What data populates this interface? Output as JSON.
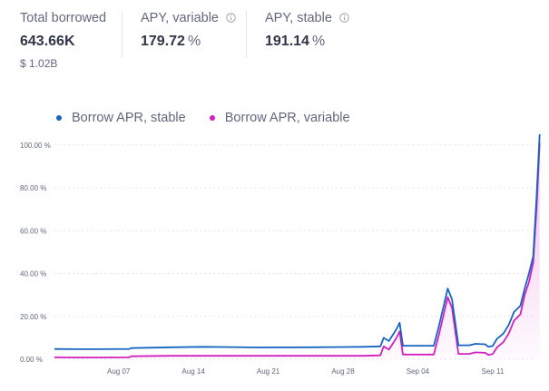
{
  "stats": {
    "total_borrowed": {
      "label": "Total borrowed",
      "value": "643.66K",
      "usd": "$ 1.02B"
    },
    "apy_variable": {
      "label": "APY, variable",
      "value": "179.72",
      "unit": "%"
    },
    "apy_stable": {
      "label": "APY, stable",
      "value": "191.14",
      "unit": "%"
    }
  },
  "colors": {
    "stable": "#1565c0",
    "variable": "#d41ebf",
    "grid": "#e3e4ea"
  },
  "chart_data": {
    "type": "line",
    "title": "",
    "xlabel": "",
    "ylabel": "",
    "legend_position": "top-left",
    "ylim": [
      0,
      105
    ],
    "y_ticks": [
      "0.00 %",
      "20.00 %",
      "40.00 %",
      "60.00 %",
      "80.00 %",
      "100.00 %"
    ],
    "x_ticks": [
      {
        "day": 7,
        "label": "Aug 07"
      },
      {
        "day": 14,
        "label": "Aug 14"
      },
      {
        "day": 21,
        "label": "Aug 21"
      },
      {
        "day": 28,
        "label": "Aug 28"
      },
      {
        "day": 35,
        "label": "Sep 04"
      },
      {
        "day": 42,
        "label": "Sep 11"
      }
    ],
    "xlim": [
      1,
      46
    ],
    "series": [
      {
        "name": "Borrow APR, stable",
        "points": [
          [
            1,
            4.8
          ],
          [
            3,
            4.7
          ],
          [
            5,
            4.7
          ],
          [
            8,
            4.8
          ],
          [
            8.2,
            5.2
          ],
          [
            12,
            5.6
          ],
          [
            15,
            5.8
          ],
          [
            20,
            5.5
          ],
          [
            25,
            5.6
          ],
          [
            30,
            5.8
          ],
          [
            31.5,
            6.0
          ],
          [
            31.8,
            10
          ],
          [
            32.3,
            8.5
          ],
          [
            33,
            14
          ],
          [
            33.3,
            17
          ],
          [
            33.6,
            6.3
          ],
          [
            36.5,
            6.3
          ],
          [
            37,
            16
          ],
          [
            37.8,
            33
          ],
          [
            38.2,
            28
          ],
          [
            38.8,
            6.5
          ],
          [
            39.8,
            6.5
          ],
          [
            40.4,
            7.2
          ],
          [
            41.3,
            7
          ],
          [
            41.6,
            5.8
          ],
          [
            42,
            6.2
          ],
          [
            42.4,
            9.5
          ],
          [
            43,
            12
          ],
          [
            43.5,
            16
          ],
          [
            44,
            22
          ],
          [
            44.6,
            25
          ],
          [
            45,
            33
          ],
          [
            45.4,
            40
          ],
          [
            45.8,
            48
          ],
          [
            46.1,
            75
          ],
          [
            46.4,
            105
          ]
        ]
      },
      {
        "name": "Borrow APR, variable",
        "points": [
          [
            1,
            0.9
          ],
          [
            3,
            0.8
          ],
          [
            5,
            0.8
          ],
          [
            8,
            0.9
          ],
          [
            8.2,
            1.4
          ],
          [
            12,
            1.6
          ],
          [
            15,
            1.6
          ],
          [
            20,
            1.6
          ],
          [
            25,
            1.6
          ],
          [
            30,
            1.6
          ],
          [
            31.5,
            1.8
          ],
          [
            31.8,
            6
          ],
          [
            32.3,
            4.5
          ],
          [
            33,
            10
          ],
          [
            33.3,
            13
          ],
          [
            33.6,
            2.2
          ],
          [
            36.5,
            2.2
          ],
          [
            37,
            12
          ],
          [
            37.8,
            29
          ],
          [
            38.2,
            24
          ],
          [
            38.8,
            2.5
          ],
          [
            39.8,
            2.5
          ],
          [
            40.4,
            3.2
          ],
          [
            41.3,
            3.0
          ],
          [
            41.6,
            2.0
          ],
          [
            42,
            2.4
          ],
          [
            42.4,
            5.5
          ],
          [
            43,
            8
          ],
          [
            43.5,
            12
          ],
          [
            44,
            18
          ],
          [
            44.6,
            21
          ],
          [
            45,
            30
          ],
          [
            45.4,
            36
          ],
          [
            45.8,
            45
          ],
          [
            46.1,
            70
          ],
          [
            46.4,
            101
          ]
        ]
      }
    ]
  }
}
